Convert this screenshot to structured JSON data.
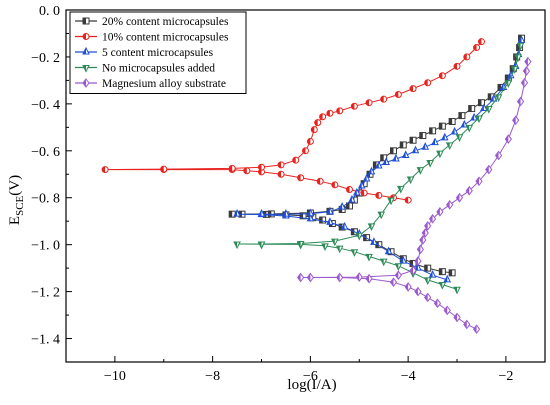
{
  "chart_data": {
    "type": "line",
    "title": "",
    "xlabel": "log(I/A)",
    "ylabel_main": "E",
    "ylabel_sub": "SCE",
    "ylabel_suffix": "(V)",
    "xlim": [
      -11,
      -1.2
    ],
    "ylim": [
      -1.5,
      0
    ],
    "xticks": [
      -10,
      -8,
      -6,
      -4,
      -2
    ],
    "yticks": [
      0,
      -0.2,
      -0.4,
      -0.6,
      -0.8,
      -1.0,
      -1.2,
      -1.4
    ],
    "xtick_labels": [
      "−10",
      "−8",
      "−6",
      "−4",
      "−2"
    ],
    "ytick_labels": [
      "0. 0",
      "−0. 2",
      "−0. 4",
      "−0. 6",
      "−0. 8",
      "−1. 0",
      "−1. 2",
      "−1. 4"
    ],
    "grid": false,
    "legend_position": "top-left",
    "series": [
      {
        "name": "20% content microcapsules",
        "color": "#3a3a3a",
        "marker": "square",
        "x": [
          -3.1,
          -3.3,
          -3.6,
          -3.9,
          -4.1,
          -4.35,
          -4.6,
          -4.85,
          -5.1,
          -5.35,
          -5.55,
          -5.75,
          -5.95,
          -6.15,
          -6.5,
          -6.9,
          -7.4,
          -7.6,
          -6.8,
          -6.0,
          -5.6,
          -5.35,
          -5.2,
          -5.1,
          -5.0,
          -4.9,
          -4.78,
          -4.65,
          -4.5,
          -4.3,
          -4.1,
          -3.9,
          -3.7,
          -3.5,
          -3.3,
          -3.1,
          -2.9,
          -2.7,
          -2.5,
          -2.3,
          -2.1,
          -1.95,
          -1.85,
          -1.78,
          -1.72,
          -1.68
        ],
        "y": [
          -1.12,
          -1.115,
          -1.1,
          -1.08,
          -1.06,
          -1.03,
          -1.0,
          -0.97,
          -0.945,
          -0.925,
          -0.91,
          -0.895,
          -0.885,
          -0.877,
          -0.873,
          -0.871,
          -0.87,
          -0.87,
          -0.869,
          -0.865,
          -0.858,
          -0.85,
          -0.835,
          -0.81,
          -0.78,
          -0.74,
          -0.7,
          -0.66,
          -0.63,
          -0.6,
          -0.575,
          -0.555,
          -0.535,
          -0.515,
          -0.495,
          -0.475,
          -0.45,
          -0.42,
          -0.395,
          -0.37,
          -0.33,
          -0.29,
          -0.25,
          -0.2,
          -0.16,
          -0.12
        ]
      },
      {
        "name": "10% content microcapsules",
        "color": "#e8231f",
        "marker": "circle",
        "x": [
          -4.0,
          -4.3,
          -4.6,
          -4.9,
          -5.2,
          -5.5,
          -5.8,
          -6.2,
          -6.6,
          -7.0,
          -7.3,
          -7.6,
          -9.0,
          -10.2,
          -9.0,
          -7.6,
          -7.0,
          -6.6,
          -6.3,
          -6.1,
          -6.0,
          -5.92,
          -5.85,
          -5.75,
          -5.6,
          -5.4,
          -5.1,
          -4.8,
          -4.5,
          -4.2,
          -3.9,
          -3.6,
          -3.3,
          -3.0,
          -2.8,
          -2.6,
          -2.5
        ],
        "y": [
          -0.81,
          -0.8,
          -0.79,
          -0.78,
          -0.765,
          -0.745,
          -0.73,
          -0.715,
          -0.7,
          -0.69,
          -0.685,
          -0.68,
          -0.68,
          -0.68,
          -0.678,
          -0.675,
          -0.67,
          -0.66,
          -0.64,
          -0.6,
          -0.56,
          -0.51,
          -0.48,
          -0.455,
          -0.44,
          -0.43,
          -0.41,
          -0.395,
          -0.38,
          -0.36,
          -0.335,
          -0.31,
          -0.28,
          -0.24,
          -0.2,
          -0.16,
          -0.135
        ]
      },
      {
        "name": "5 content microcapsules",
        "color": "#1f4fd8",
        "marker": "triangle-up",
        "x": [
          -3.2,
          -3.5,
          -3.8,
          -4.1,
          -4.4,
          -4.7,
          -5.0,
          -5.3,
          -5.6,
          -6.0,
          -6.5,
          -7.0,
          -7.5,
          -7.0,
          -6.5,
          -6.0,
          -5.6,
          -5.35,
          -5.15,
          -5.05,
          -4.95,
          -4.85,
          -4.75,
          -4.6,
          -4.45,
          -4.25,
          -4.05,
          -3.85,
          -3.65,
          -3.45,
          -3.25,
          -3.05,
          -2.85,
          -2.65,
          -2.45,
          -2.25,
          -2.05,
          -1.9,
          -1.8,
          -1.74,
          -1.68
        ],
        "y": [
          -1.15,
          -1.13,
          -1.1,
          -1.07,
          -1.03,
          -0.99,
          -0.955,
          -0.925,
          -0.905,
          -0.89,
          -0.878,
          -0.872,
          -0.87,
          -0.87,
          -0.87,
          -0.868,
          -0.86,
          -0.84,
          -0.81,
          -0.78,
          -0.75,
          -0.72,
          -0.69,
          -0.665,
          -0.65,
          -0.635,
          -0.62,
          -0.6,
          -0.585,
          -0.565,
          -0.545,
          -0.52,
          -0.49,
          -0.46,
          -0.42,
          -0.38,
          -0.33,
          -0.28,
          -0.24,
          -0.19,
          -0.13
        ]
      },
      {
        "name": "No microcapsules added",
        "color": "#2e8b57",
        "marker": "triangle-down",
        "x": [
          -3.0,
          -3.3,
          -3.6,
          -3.9,
          -4.2,
          -4.5,
          -4.8,
          -5.1,
          -5.4,
          -5.7,
          -6.2,
          -7.0,
          -7.5,
          -7.0,
          -6.2,
          -5.5,
          -5.0,
          -4.75,
          -4.55,
          -4.35,
          -4.15,
          -3.95,
          -3.75,
          -3.55,
          -3.35,
          -3.15,
          -2.95,
          -2.75,
          -2.55,
          -2.35,
          -2.15,
          -1.95,
          -1.82,
          -1.75,
          -1.7
        ],
        "y": [
          -1.19,
          -1.17,
          -1.15,
          -1.12,
          -1.09,
          -1.07,
          -1.05,
          -1.03,
          -1.015,
          -1.005,
          -0.999,
          -0.998,
          -0.997,
          -0.997,
          -0.995,
          -0.985,
          -0.96,
          -0.92,
          -0.87,
          -0.81,
          -0.76,
          -0.72,
          -0.68,
          -0.65,
          -0.61,
          -0.575,
          -0.54,
          -0.5,
          -0.46,
          -0.42,
          -0.37,
          -0.31,
          -0.25,
          -0.2,
          -0.15
        ]
      },
      {
        "name": "Magnesium alloy substrate",
        "color": "#9b59d0",
        "marker": "diamond",
        "x": [
          -2.6,
          -2.8,
          -3.0,
          -3.2,
          -3.4,
          -3.6,
          -3.8,
          -4.0,
          -4.3,
          -4.8,
          -5.4,
          -6.2,
          -6.0,
          -5.0,
          -4.2,
          -3.9,
          -3.8,
          -3.75,
          -3.7,
          -3.65,
          -3.6,
          -3.5,
          -3.35,
          -3.15,
          -2.95,
          -2.75,
          -2.55,
          -2.35,
          -2.15,
          -1.95,
          -1.8,
          -1.7,
          -1.62,
          -1.58,
          -1.55
        ],
        "y": [
          -1.36,
          -1.34,
          -1.31,
          -1.28,
          -1.25,
          -1.225,
          -1.2,
          -1.18,
          -1.16,
          -1.145,
          -1.14,
          -1.14,
          -1.14,
          -1.138,
          -1.13,
          -1.11,
          -1.07,
          -1.02,
          -0.98,
          -0.95,
          -0.92,
          -0.89,
          -0.86,
          -0.83,
          -0.8,
          -0.77,
          -0.73,
          -0.68,
          -0.62,
          -0.55,
          -0.47,
          -0.39,
          -0.31,
          -0.26,
          -0.22
        ]
      }
    ]
  }
}
